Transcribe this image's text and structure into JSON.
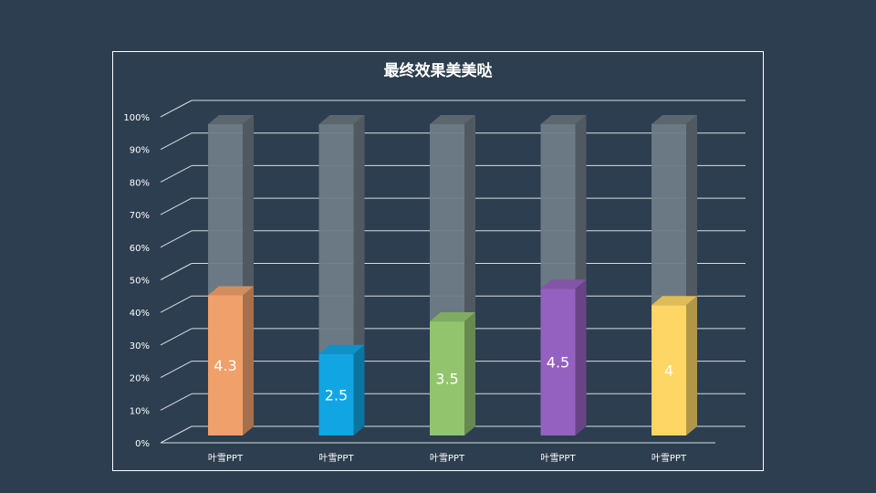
{
  "chart_data": {
    "type": "bar",
    "title": "最终效果美美哒",
    "categories": [
      "叶雪PPT",
      "叶雪PPT",
      "叶雪PPT",
      "叶雪PPT",
      "叶雪PPT"
    ],
    "values": [
      4.3,
      2.5,
      3.5,
      4.5,
      4
    ],
    "max_value": 10,
    "y_ticks": [
      "0%",
      "10%",
      "20%",
      "30%",
      "40%",
      "50%",
      "60%",
      "70%",
      "80%",
      "90%",
      "100%"
    ],
    "ylim": [
      0,
      100
    ],
    "grid": true,
    "legend": "none",
    "style": "3d-stacked-percent",
    "background_series_color": "#6f7c87",
    "colors": [
      "#f0a06a",
      "#12a5e3",
      "#92c46e",
      "#9561c0",
      "#fdd665"
    ]
  }
}
